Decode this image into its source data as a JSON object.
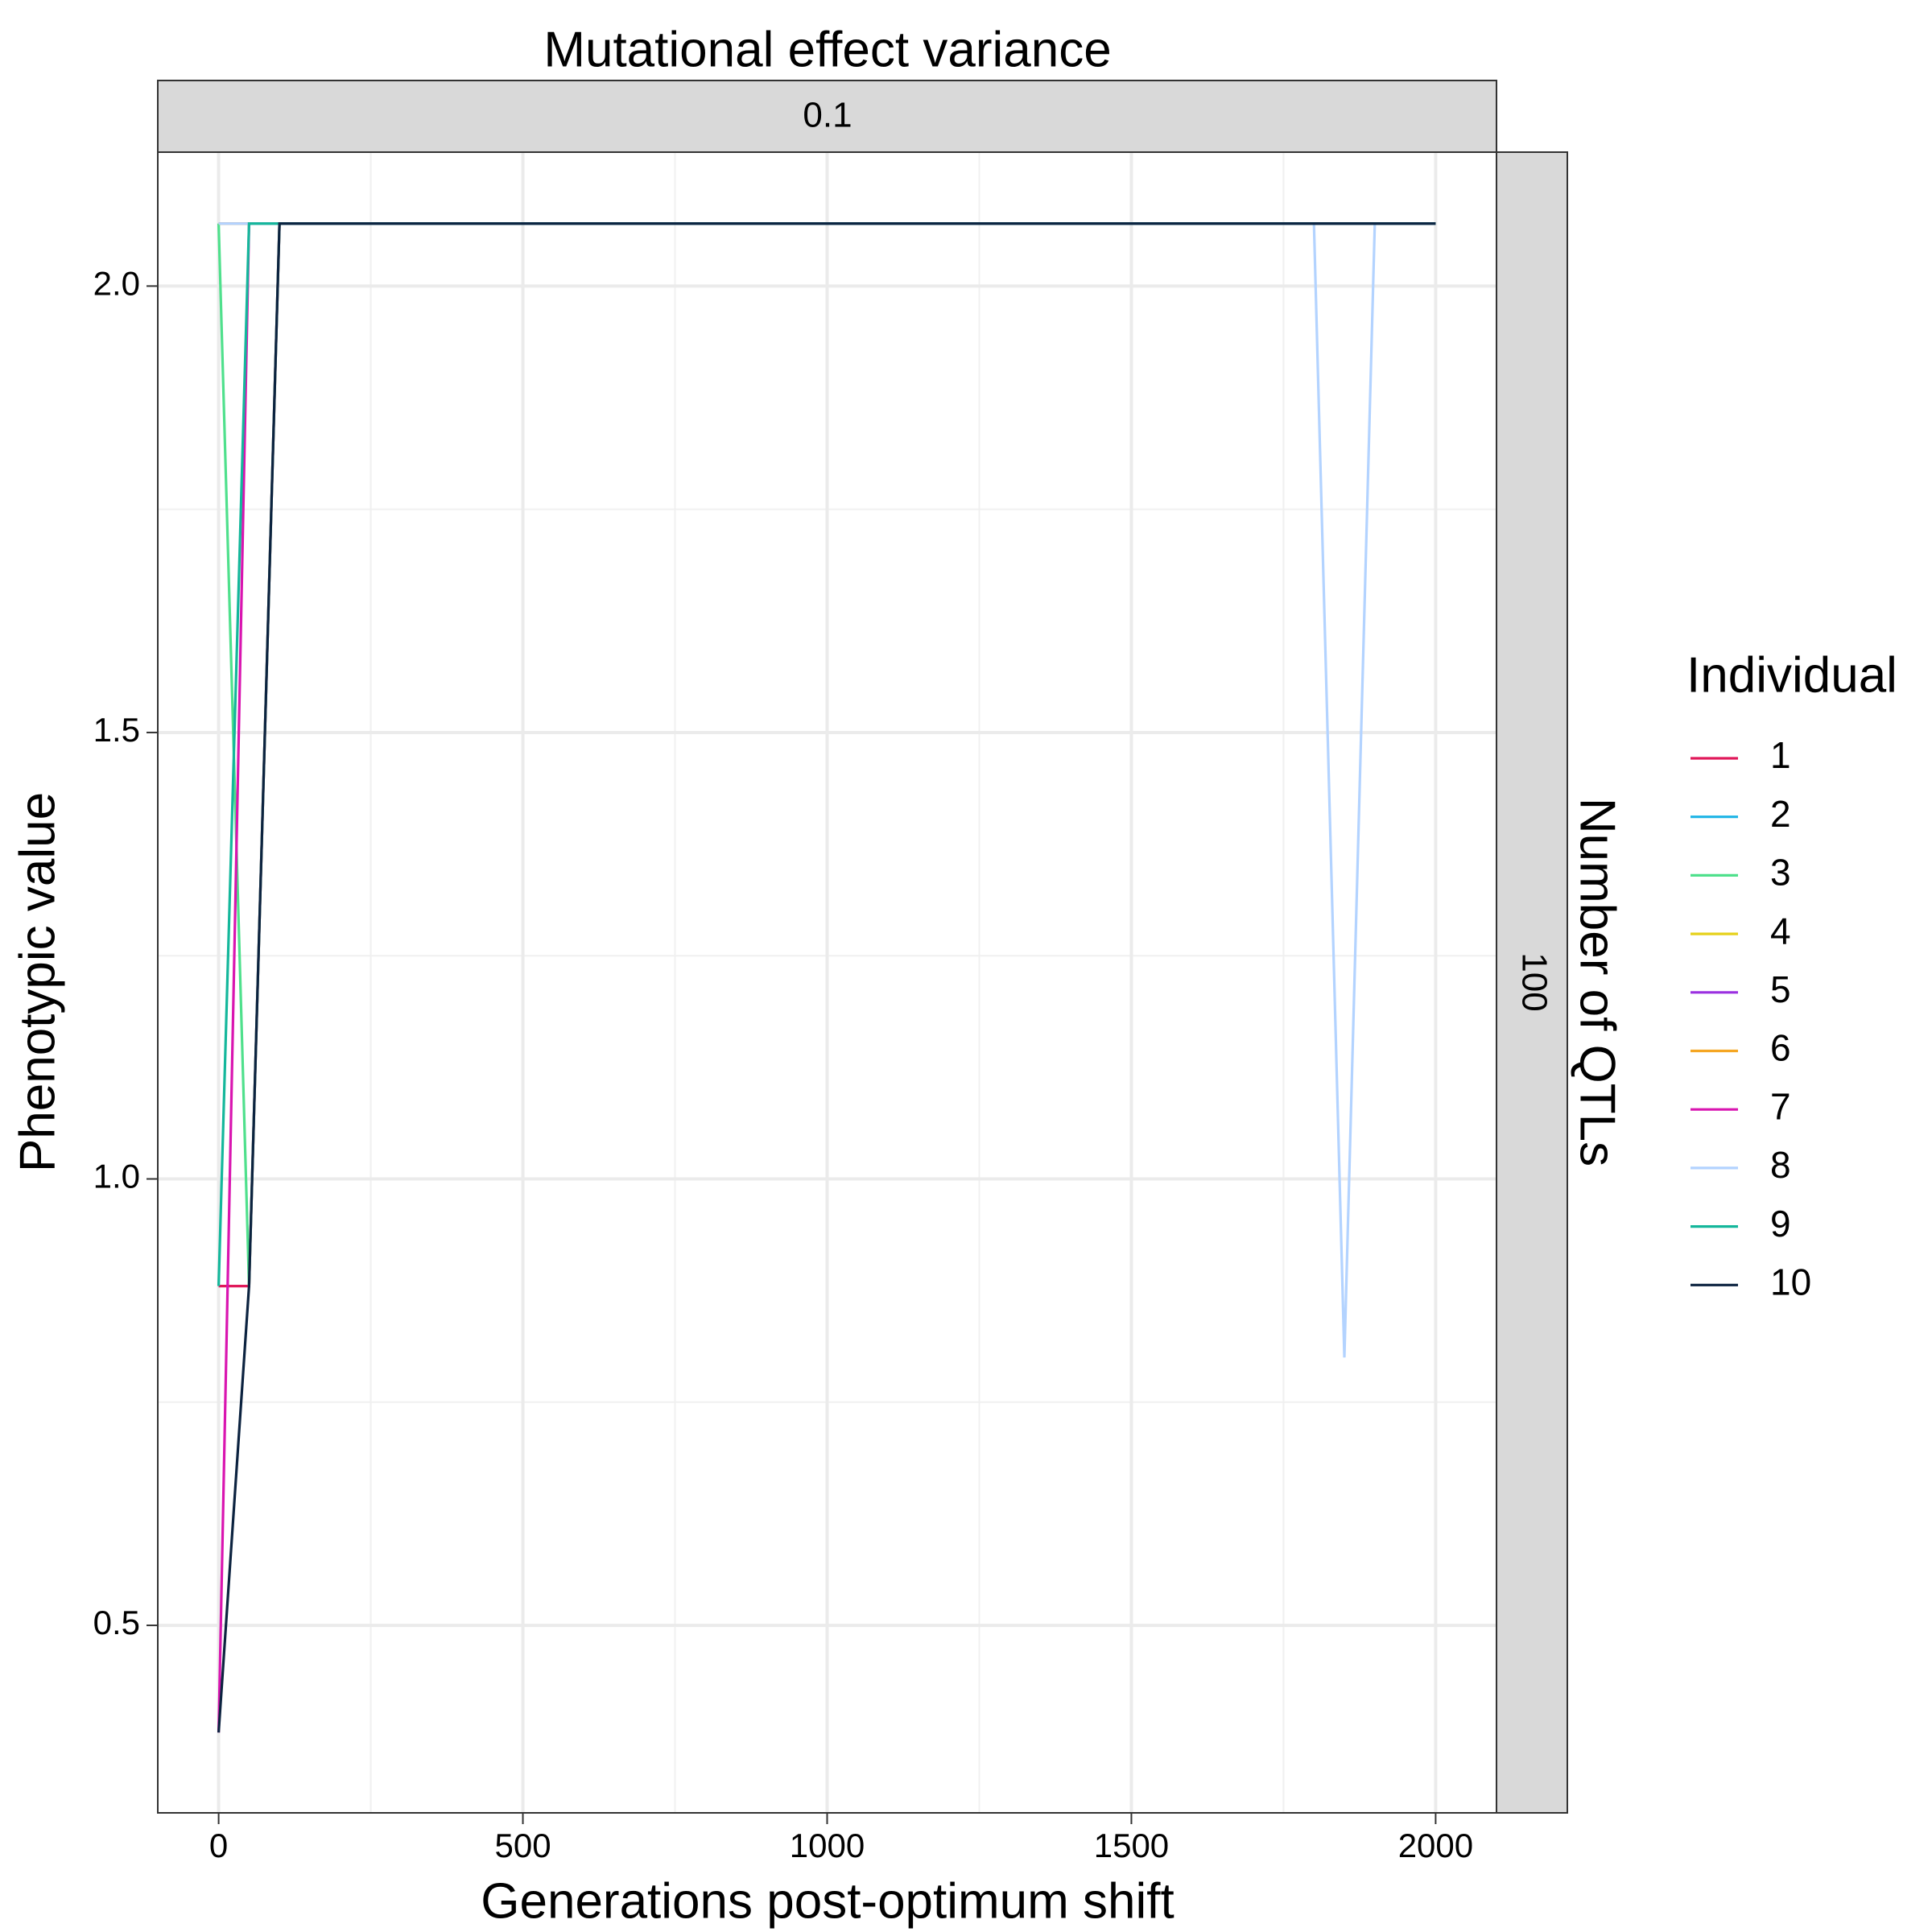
{
  "chart_data": {
    "type": "line",
    "col_strip_title": "Mutational effect variance",
    "col_strip_label": "0.1",
    "row_strip_title": "Number of QTLs",
    "row_strip_label": "100",
    "x_label": "Generations post-optimum shift",
    "y_label": "Phenotypic value",
    "legend_title": "Individual",
    "x": [
      0,
      50,
      100,
      1800,
      1850,
      1900,
      2000
    ],
    "series": [
      {
        "name": "1",
        "color": "#e0195a",
        "values": [
          0.88,
          0.88,
          2.07,
          2.07,
          2.07,
          2.07,
          2.07
        ]
      },
      {
        "name": "2",
        "color": "#1eb4e6",
        "values": [
          2.07,
          2.07,
          2.07,
          2.07,
          2.07,
          2.07,
          2.07
        ]
      },
      {
        "name": "3",
        "color": "#4fe08c",
        "values": [
          2.07,
          0.88,
          2.07,
          2.07,
          2.07,
          2.07,
          2.07
        ]
      },
      {
        "name": "4",
        "color": "#e6d11c",
        "values": [
          2.07,
          2.07,
          2.07,
          2.07,
          2.07,
          2.07,
          2.07
        ]
      },
      {
        "name": "5",
        "color": "#9b30e0",
        "values": [
          2.07,
          2.07,
          2.07,
          2.07,
          2.07,
          2.07,
          2.07
        ]
      },
      {
        "name": "6",
        "color": "#f5a623",
        "values": [
          2.07,
          2.07,
          2.07,
          2.07,
          2.07,
          2.07,
          2.07
        ]
      },
      {
        "name": "7",
        "color": "#d915b0",
        "values": [
          0.38,
          2.07,
          2.07,
          2.07,
          2.07,
          2.07,
          2.07
        ]
      },
      {
        "name": "8",
        "color": "#b3d3ff",
        "values": [
          2.07,
          2.07,
          2.07,
          2.07,
          0.8,
          2.07,
          2.07
        ]
      },
      {
        "name": "9",
        "color": "#14b79b",
        "values": [
          0.88,
          2.07,
          2.07,
          2.07,
          2.07,
          2.07,
          2.07
        ]
      },
      {
        "name": "10",
        "color": "#0c2340",
        "values": [
          0.38,
          0.88,
          2.07,
          2.07,
          2.07,
          2.07,
          2.07
        ]
      }
    ],
    "xlim": [
      -100,
      2100
    ],
    "xticks": [
      0,
      500,
      1000,
      1500,
      2000
    ],
    "minor_xticks": [
      250,
      750,
      1250,
      1750
    ],
    "ylim": [
      0.29,
      2.15
    ],
    "yticks": [
      {
        "value": 0.5,
        "label": "0.5"
      },
      {
        "value": 1,
        "label": "1.0"
      },
      {
        "value": 1.5,
        "label": "1.5"
      },
      {
        "value": 2,
        "label": "2.0"
      }
    ],
    "minor_yticks": [
      0.75,
      1.25,
      1.75
    ],
    "grid": true,
    "legend_position": "right"
  }
}
